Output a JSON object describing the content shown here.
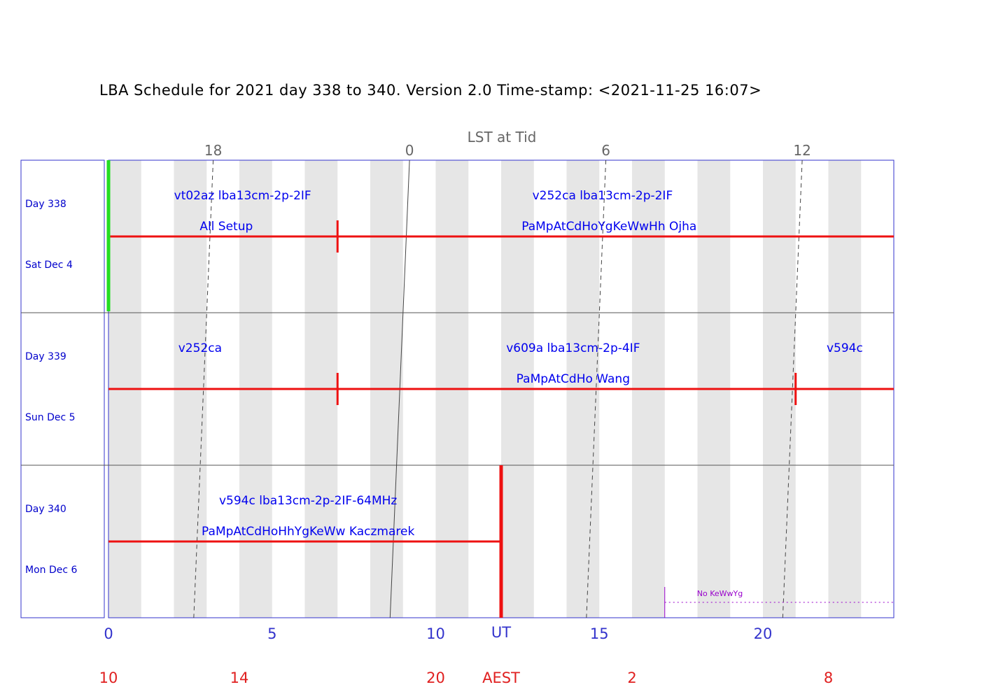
{
  "chart_data": {
    "type": "timeline-schedule",
    "title": "LBA Schedule for 2021 day 338 to 340. Version 2.0 Time-stamp: <2021-11-25 16:07>",
    "top_axis": {
      "label": "LST at Tid",
      "ticks": [
        {
          "label": "18",
          "ut": 3.2
        },
        {
          "label": "0",
          "ut": 9.2
        },
        {
          "label": "6",
          "ut": 15.2
        },
        {
          "label": "12",
          "ut": 21.2
        }
      ]
    },
    "ut_axis": {
      "label": "UT",
      "range": [
        0,
        24
      ],
      "ticks": [
        {
          "label": "0",
          "ut": 0
        },
        {
          "label": "5",
          "ut": 5
        },
        {
          "label": "10",
          "ut": 10
        },
        {
          "label": "15",
          "ut": 15
        },
        {
          "label": "20",
          "ut": 20
        }
      ]
    },
    "local_axis": {
      "label": "AEST",
      "ticks": [
        {
          "label": "10",
          "ut": 0
        },
        {
          "label": "14",
          "ut": 4
        },
        {
          "label": "20",
          "ut": 10
        },
        {
          "label": "2",
          "ut": 16
        },
        {
          "label": "8",
          "ut": 22
        }
      ]
    },
    "days": [
      {
        "day": "Day 338",
        "date": "Sat Dec 4",
        "labels": [
          {
            "text": "vt02az  lba13cm-2p-2IF",
            "ut": 4.1,
            "line": 1
          },
          {
            "text": "All  Setup",
            "ut": 3.6,
            "line": 2
          },
          {
            "text": "v252ca  lba13cm-2p-2IF",
            "ut": 15.1,
            "line": 1
          },
          {
            "text": "PaMpAtCdHoYgKeWwHh  Ojha",
            "ut": 15.3,
            "line": 2
          }
        ],
        "markers": [
          0.0,
          7.0
        ],
        "now_marker": 0.0
      },
      {
        "day": "Day 339",
        "date": "Sun Dec 5",
        "labels": [
          {
            "text": "v252ca",
            "ut": 2.8,
            "line": 1
          },
          {
            "text": "v609a  lba13cm-2p-4IF",
            "ut": 14.2,
            "line": 1
          },
          {
            "text": "PaMpAtCdHo  Wang",
            "ut": 14.2,
            "line": 2
          },
          {
            "text": "v594c",
            "ut": 22.5,
            "line": 1
          }
        ],
        "markers": [
          7.0,
          21.0
        ]
      },
      {
        "day": "Day 340",
        "date": "Mon Dec 6",
        "labels": [
          {
            "text": "v594c  lba13cm-2p-2IF-64MHz",
            "ut": 6.1,
            "line": 1
          },
          {
            "text": "PaMpAtCdHoHhYgKeWw  Kaczmarek",
            "ut": 6.1,
            "line": 2
          }
        ],
        "markers": [],
        "end_ut": 12.0,
        "note": {
          "text": "No  KeWwYg",
          "start_ut": 17.0
        }
      }
    ],
    "colors": {
      "frame": "#3333cc",
      "schedule_bar": "#ee1111",
      "shading": "#e6e6e6",
      "now_marker": "#22dd22",
      "lst_grid": "#444444",
      "note": "#9900cc"
    }
  }
}
